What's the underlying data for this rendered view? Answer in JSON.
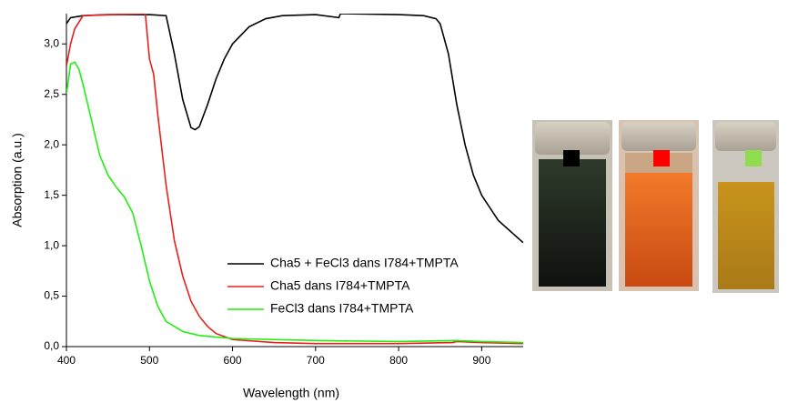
{
  "chart_data": {
    "type": "line",
    "xlabel": "Wavelength (nm)",
    "ylabel": "Absorption (a.u.)",
    "xlim": [
      400,
      950
    ],
    "ylim": [
      0,
      3.3
    ],
    "xticks": [
      400,
      500,
      600,
      700,
      800,
      900
    ],
    "yticks": [
      {
        "value": 0,
        "label": "0,0"
      },
      {
        "value": 0.5,
        "label": "0,5"
      },
      {
        "value": 1,
        "label": "1,0"
      },
      {
        "value": 1.5,
        "label": "1,5"
      },
      {
        "value": 2,
        "label": "2,0"
      },
      {
        "value": 2.5,
        "label": "2,5"
      },
      {
        "value": 3,
        "label": "3,0"
      }
    ],
    "legend": "lower right",
    "series": [
      {
        "name": "Cha5 + FeCl3 dans I784+TMPTA",
        "color": "#000000",
        "x": [
          400,
          405,
          420,
          450,
          500,
          520,
          530,
          540,
          550,
          555,
          560,
          570,
          580,
          590,
          600,
          620,
          640,
          660,
          700,
          728,
          730,
          800,
          830,
          845,
          850,
          860,
          870,
          880,
          890,
          900,
          920,
          950
        ],
        "values": [
          3.2,
          3.26,
          3.28,
          3.29,
          3.29,
          3.28,
          2.9,
          2.45,
          2.17,
          2.15,
          2.18,
          2.4,
          2.65,
          2.85,
          3.0,
          3.17,
          3.25,
          3.28,
          3.29,
          3.26,
          3.3,
          3.29,
          3.28,
          3.25,
          3.2,
          2.9,
          2.4,
          2.0,
          1.7,
          1.5,
          1.25,
          1.03
        ]
      },
      {
        "name": "Cha5 dans I784+TMPTA",
        "color": "#e8201c",
        "x": [
          400,
          405,
          410,
          420,
          495,
          500,
          505,
          510,
          520,
          530,
          540,
          550,
          560,
          570,
          580,
          600,
          650,
          700,
          800,
          865,
          870,
          900,
          950
        ],
        "values": [
          2.78,
          3.0,
          3.15,
          3.28,
          3.3,
          2.85,
          2.7,
          2.3,
          1.6,
          1.05,
          0.7,
          0.45,
          0.3,
          0.2,
          0.13,
          0.07,
          0.04,
          0.03,
          0.03,
          0.04,
          0.05,
          0.04,
          0.03
        ]
      },
      {
        "name": "FeCl3 dans I784+TMPTA",
        "color": "#22ee11",
        "x": [
          400,
          405,
          410,
          415,
          420,
          430,
          440,
          450,
          460,
          470,
          480,
          490,
          500,
          510,
          520,
          540,
          560,
          600,
          700,
          800,
          870,
          900,
          950
        ],
        "values": [
          2.5,
          2.8,
          2.82,
          2.75,
          2.6,
          2.25,
          1.9,
          1.7,
          1.58,
          1.48,
          1.32,
          1.0,
          0.65,
          0.4,
          0.25,
          0.15,
          0.11,
          0.08,
          0.06,
          0.05,
          0.06,
          0.05,
          0.04
        ]
      }
    ]
  }
}
